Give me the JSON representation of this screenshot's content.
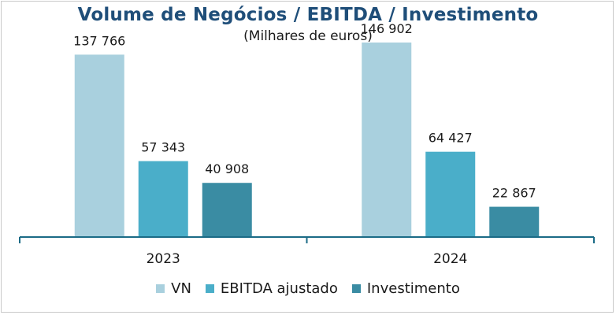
{
  "chart_data": {
    "type": "bar",
    "title": "Volume de Negócios / EBITDA / Investimento",
    "subtitle": "(Milhares de euros)",
    "categories": [
      "2023",
      "2024"
    ],
    "series": [
      {
        "name": "VN",
        "values": [
          137766,
          146902
        ],
        "labels": [
          "137 766",
          "146 902"
        ],
        "color": "#a9d0de"
      },
      {
        "name": "EBITDA ajustado",
        "values": [
          57343,
          64427
        ],
        "labels": [
          "57 343",
          "64 427"
        ],
        "color": "#4aaec9"
      },
      {
        "name": "Investimento",
        "values": [
          40908,
          22867
        ],
        "labels": [
          "40 908",
          "22 867"
        ],
        "color": "#3a8ca3"
      }
    ],
    "ylim": [
      0,
      160000
    ],
    "grid": false,
    "legend": "bottom",
    "axis_color": "#1b6b86"
  }
}
